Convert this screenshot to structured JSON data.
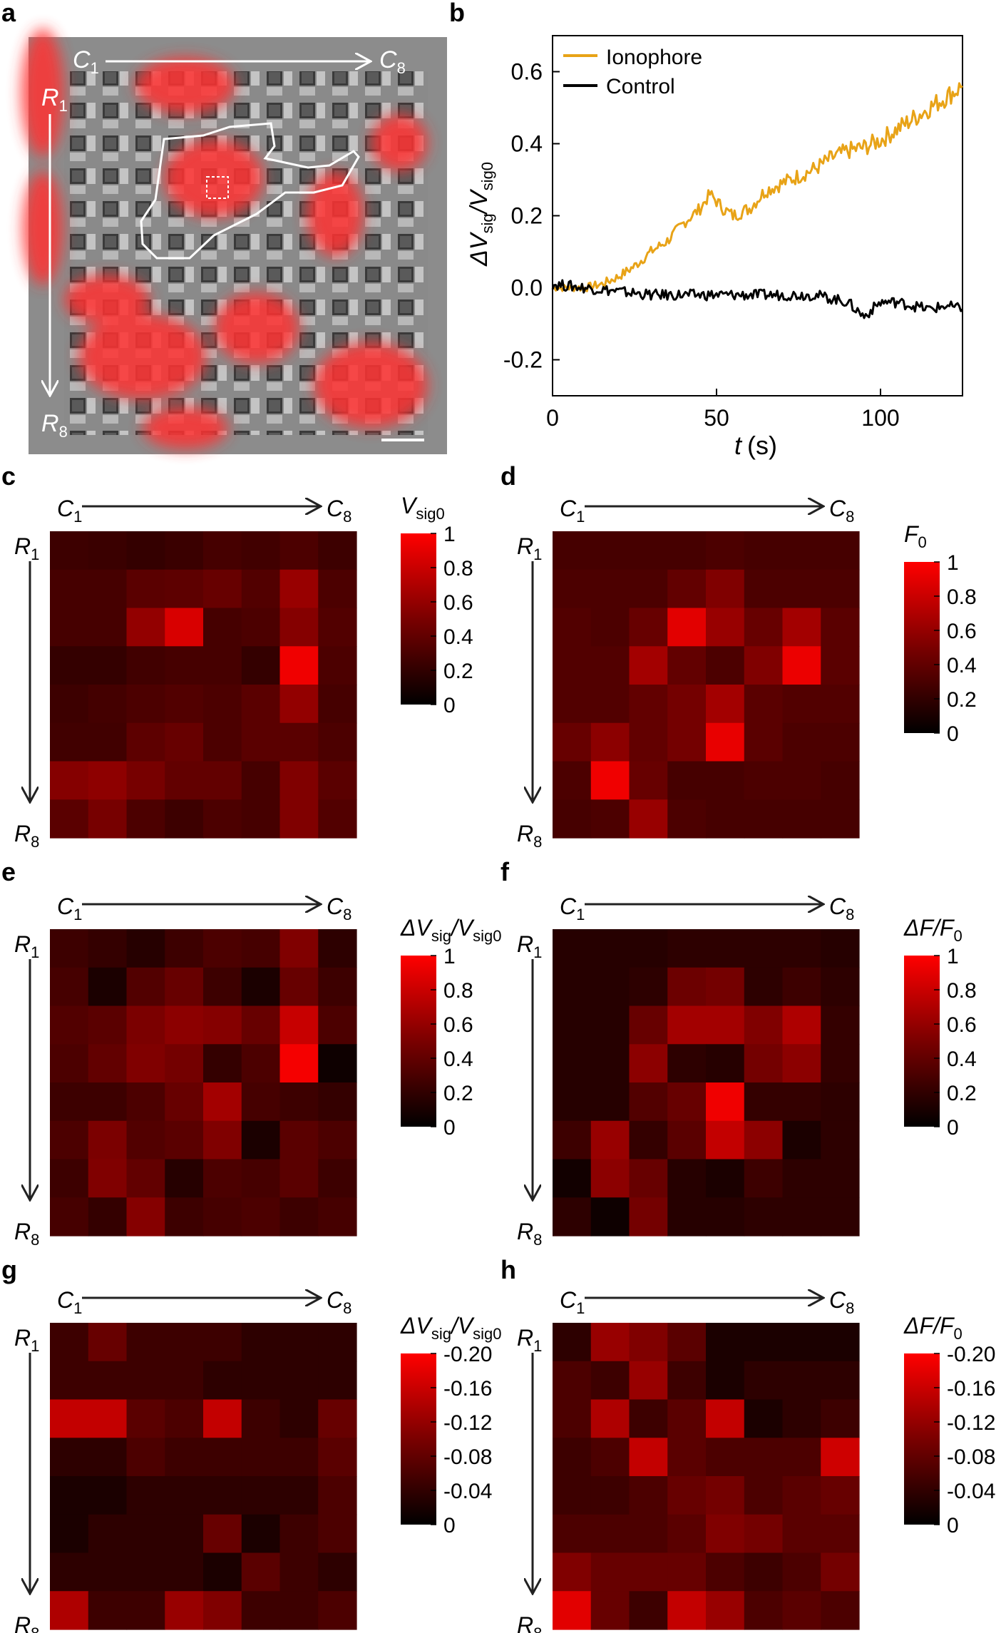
{
  "figure": {
    "panels": {
      "a": {
        "letter": "a",
        "col_start": "C",
        "col_start_sub": "1",
        "col_end": "C",
        "col_end_sub": "8",
        "row_start": "R",
        "row_start_sub": "1",
        "row_end": "R",
        "row_end_sub": "8"
      },
      "b": {
        "letter": "b"
      },
      "c": {
        "letter": "c",
        "cb_title": "V",
        "cb_title_sub": "sig0",
        "cb_ticks": [
          "1",
          "0.8",
          "0.6",
          "0.4",
          "0.2",
          "0"
        ]
      },
      "d": {
        "letter": "d",
        "cb_title": "F",
        "cb_title_sub": "0",
        "cb_ticks": [
          "1",
          "0.8",
          "0.6",
          "0.4",
          "0.2",
          "0"
        ]
      },
      "e": {
        "letter": "e",
        "cb_title": "ΔV",
        "cb_title_sub": "sig",
        "cb_title_mid": "/V",
        "cb_title_sub2": "sig0",
        "cb_ticks": [
          "1",
          "0.8",
          "0.6",
          "0.4",
          "0.2",
          "0"
        ]
      },
      "f": {
        "letter": "f",
        "cb_title": "ΔF/F",
        "cb_title_sub": "0",
        "cb_ticks": [
          "1",
          "0.8",
          "0.6",
          "0.4",
          "0.2",
          "0"
        ]
      },
      "g": {
        "letter": "g",
        "cb_title": "ΔV",
        "cb_title_sub": "sig",
        "cb_title_mid": "/V",
        "cb_title_sub2": "sig0",
        "cb_ticks": [
          "-0.20",
          "-0.16",
          "-0.12",
          "-0.08",
          "-0.04",
          "0"
        ]
      },
      "h": {
        "letter": "h",
        "cb_title": "ΔF/F",
        "cb_title_sub": "0",
        "cb_ticks": [
          "-0.20",
          "-0.16",
          "-0.12",
          "-0.08",
          "-0.04",
          "0"
        ]
      }
    },
    "grid_labels": {
      "c": "C",
      "c1": "1",
      "c8": "8",
      "r": "R",
      "r1": "1",
      "r8": "8"
    },
    "colors": {
      "ionophore": "#E8A317",
      "control": "#000000",
      "heat_max": "#FF0000",
      "heat_min": "#000000"
    }
  },
  "chart_data": [
    {
      "type": "line",
      "panel": "b",
      "xlabel": "t",
      "xunit": "(s)",
      "ylabel": "ΔV",
      "ylabel_sub": "sig",
      "ylabel_mid": "/V",
      "ylabel_sub2": "sig0",
      "xlim": [
        0,
        125
      ],
      "ylim": [
        -0.3,
        0.7
      ],
      "xticks": [
        "0",
        "50",
        "100"
      ],
      "xtick_values": [
        0,
        50,
        100
      ],
      "yticks": [
        "0.6",
        "0.4",
        "0.2",
        "0.0",
        "-0.2"
      ],
      "ytick_values": [
        0.6,
        0.4,
        0.2,
        0.0,
        -0.2
      ],
      "legend_position": "top-left",
      "series": [
        {
          "name": "Ionophore",
          "color": "#E8A317",
          "x": [
            0,
            10,
            15,
            20,
            25,
            30,
            35,
            40,
            45,
            48,
            52,
            55,
            60,
            65,
            70,
            75,
            80,
            85,
            90,
            95,
            100,
            105,
            110,
            115,
            120,
            125
          ],
          "y": [
            0.0,
            0.0,
            0.01,
            0.03,
            0.06,
            0.1,
            0.13,
            0.18,
            0.22,
            0.26,
            0.22,
            0.2,
            0.22,
            0.27,
            0.29,
            0.31,
            0.33,
            0.36,
            0.38,
            0.39,
            0.41,
            0.44,
            0.47,
            0.5,
            0.53,
            0.56
          ]
        },
        {
          "name": "Control",
          "color": "#000000",
          "x": [
            0,
            10,
            20,
            30,
            40,
            50,
            60,
            70,
            80,
            90,
            95,
            100,
            105,
            110,
            115,
            120,
            125
          ],
          "y": [
            0.01,
            0.0,
            -0.01,
            -0.02,
            -0.02,
            -0.02,
            -0.02,
            -0.02,
            -0.02,
            -0.04,
            -0.08,
            -0.04,
            -0.04,
            -0.05,
            -0.06,
            -0.05,
            -0.06
          ]
        }
      ]
    },
    {
      "type": "heatmap",
      "panel": "c",
      "vmin": 0,
      "vmax": 1,
      "values": [
        [
          0.15,
          0.14,
          0.12,
          0.14,
          0.18,
          0.16,
          0.2,
          0.15
        ],
        [
          0.18,
          0.18,
          0.25,
          0.26,
          0.3,
          0.22,
          0.5,
          0.2
        ],
        [
          0.18,
          0.18,
          0.48,
          0.8,
          0.18,
          0.2,
          0.42,
          0.22
        ],
        [
          0.12,
          0.12,
          0.16,
          0.18,
          0.18,
          0.12,
          0.92,
          0.2
        ],
        [
          0.15,
          0.17,
          0.2,
          0.22,
          0.2,
          0.25,
          0.48,
          0.18
        ],
        [
          0.16,
          0.16,
          0.26,
          0.3,
          0.2,
          0.25,
          0.25,
          0.2
        ],
        [
          0.42,
          0.46,
          0.36,
          0.28,
          0.28,
          0.18,
          0.4,
          0.25
        ],
        [
          0.25,
          0.36,
          0.2,
          0.15,
          0.2,
          0.18,
          0.4,
          0.22
        ]
      ]
    },
    {
      "type": "heatmap",
      "panel": "d",
      "vmin": 0,
      "vmax": 1,
      "values": [
        [
          0.18,
          0.18,
          0.18,
          0.18,
          0.2,
          0.18,
          0.18,
          0.18
        ],
        [
          0.2,
          0.2,
          0.2,
          0.28,
          0.4,
          0.2,
          0.2,
          0.2
        ],
        [
          0.22,
          0.2,
          0.3,
          0.85,
          0.5,
          0.3,
          0.55,
          0.25
        ],
        [
          0.22,
          0.22,
          0.55,
          0.28,
          0.2,
          0.4,
          0.9,
          0.25
        ],
        [
          0.22,
          0.22,
          0.28,
          0.35,
          0.55,
          0.25,
          0.22,
          0.22
        ],
        [
          0.3,
          0.45,
          0.28,
          0.35,
          0.88,
          0.25,
          0.2,
          0.2
        ],
        [
          0.2,
          0.92,
          0.3,
          0.18,
          0.18,
          0.2,
          0.2,
          0.18
        ],
        [
          0.18,
          0.2,
          0.5,
          0.2,
          0.18,
          0.18,
          0.18,
          0.18
        ]
      ]
    },
    {
      "type": "heatmap",
      "panel": "e",
      "vmin": 0,
      "vmax": 1,
      "values": [
        [
          0.15,
          0.12,
          0.08,
          0.15,
          0.2,
          0.18,
          0.4,
          0.1
        ],
        [
          0.18,
          0.05,
          0.22,
          0.3,
          0.15,
          0.05,
          0.3,
          0.15
        ],
        [
          0.22,
          0.25,
          0.38,
          0.45,
          0.42,
          0.3,
          0.72,
          0.2
        ],
        [
          0.2,
          0.28,
          0.4,
          0.35,
          0.12,
          0.2,
          0.95,
          0.02
        ],
        [
          0.15,
          0.15,
          0.2,
          0.3,
          0.55,
          0.18,
          0.15,
          0.12
        ],
        [
          0.2,
          0.38,
          0.22,
          0.25,
          0.4,
          0.05,
          0.25,
          0.2
        ],
        [
          0.15,
          0.4,
          0.28,
          0.08,
          0.2,
          0.18,
          0.25,
          0.15
        ],
        [
          0.18,
          0.12,
          0.42,
          0.15,
          0.18,
          0.2,
          0.15,
          0.18
        ]
      ]
    },
    {
      "type": "heatmap",
      "panel": "f",
      "vmin": 0,
      "vmax": 1,
      "values": [
        [
          0.08,
          0.08,
          0.08,
          0.1,
          0.1,
          0.1,
          0.1,
          0.08
        ],
        [
          0.08,
          0.08,
          0.1,
          0.32,
          0.35,
          0.1,
          0.15,
          0.1
        ],
        [
          0.08,
          0.08,
          0.3,
          0.55,
          0.55,
          0.4,
          0.6,
          0.12
        ],
        [
          0.08,
          0.08,
          0.45,
          0.1,
          0.08,
          0.35,
          0.45,
          0.12
        ],
        [
          0.08,
          0.08,
          0.22,
          0.3,
          0.92,
          0.12,
          0.12,
          0.1
        ],
        [
          0.15,
          0.5,
          0.12,
          0.25,
          0.7,
          0.45,
          0.05,
          0.1
        ],
        [
          0.03,
          0.45,
          0.3,
          0.08,
          0.05,
          0.15,
          0.1,
          0.1
        ],
        [
          0.1,
          0.02,
          0.35,
          0.08,
          0.08,
          0.1,
          0.1,
          0.1
        ]
      ]
    },
    {
      "type": "heatmap",
      "panel": "g",
      "vmin": -0.2,
      "vmax": 0,
      "values": [
        [
          -0.03,
          -0.06,
          -0.03,
          -0.03,
          -0.03,
          -0.02,
          -0.02,
          -0.02
        ],
        [
          -0.03,
          -0.03,
          -0.03,
          -0.03,
          -0.02,
          -0.02,
          -0.02,
          -0.02
        ],
        [
          -0.14,
          -0.14,
          -0.05,
          -0.04,
          -0.14,
          -0.03,
          -0.02,
          -0.06
        ],
        [
          -0.02,
          -0.02,
          -0.04,
          -0.03,
          -0.03,
          -0.03,
          -0.03,
          -0.05
        ],
        [
          -0.01,
          -0.01,
          -0.02,
          -0.02,
          -0.02,
          -0.02,
          -0.02,
          -0.04
        ],
        [
          -0.01,
          -0.02,
          -0.02,
          -0.02,
          -0.06,
          -0.01,
          -0.03,
          -0.04
        ],
        [
          -0.02,
          -0.02,
          -0.02,
          -0.02,
          -0.01,
          -0.05,
          -0.03,
          -0.02
        ],
        [
          -0.12,
          -0.03,
          -0.03,
          -0.1,
          -0.08,
          -0.03,
          -0.03,
          -0.04
        ]
      ]
    },
    {
      "type": "heatmap",
      "panel": "h",
      "vmin": -0.2,
      "vmax": 0,
      "values": [
        [
          -0.02,
          -0.1,
          -0.08,
          -0.05,
          -0.01,
          -0.01,
          -0.01,
          -0.01
        ],
        [
          -0.04,
          -0.03,
          -0.1,
          -0.03,
          -0.01,
          -0.02,
          -0.02,
          -0.02
        ],
        [
          -0.04,
          -0.12,
          -0.03,
          -0.05,
          -0.14,
          -0.01,
          -0.02,
          -0.03
        ],
        [
          -0.03,
          -0.04,
          -0.14,
          -0.05,
          -0.04,
          -0.04,
          -0.04,
          -0.15
        ],
        [
          -0.03,
          -0.03,
          -0.04,
          -0.06,
          -0.07,
          -0.04,
          -0.05,
          -0.06
        ],
        [
          -0.04,
          -0.04,
          -0.04,
          -0.05,
          -0.08,
          -0.07,
          -0.05,
          -0.05
        ],
        [
          -0.08,
          -0.06,
          -0.06,
          -0.06,
          -0.04,
          -0.03,
          -0.04,
          -0.07
        ],
        [
          -0.17,
          -0.06,
          -0.03,
          -0.14,
          -0.1,
          -0.04,
          -0.05,
          -0.04
        ]
      ]
    }
  ]
}
